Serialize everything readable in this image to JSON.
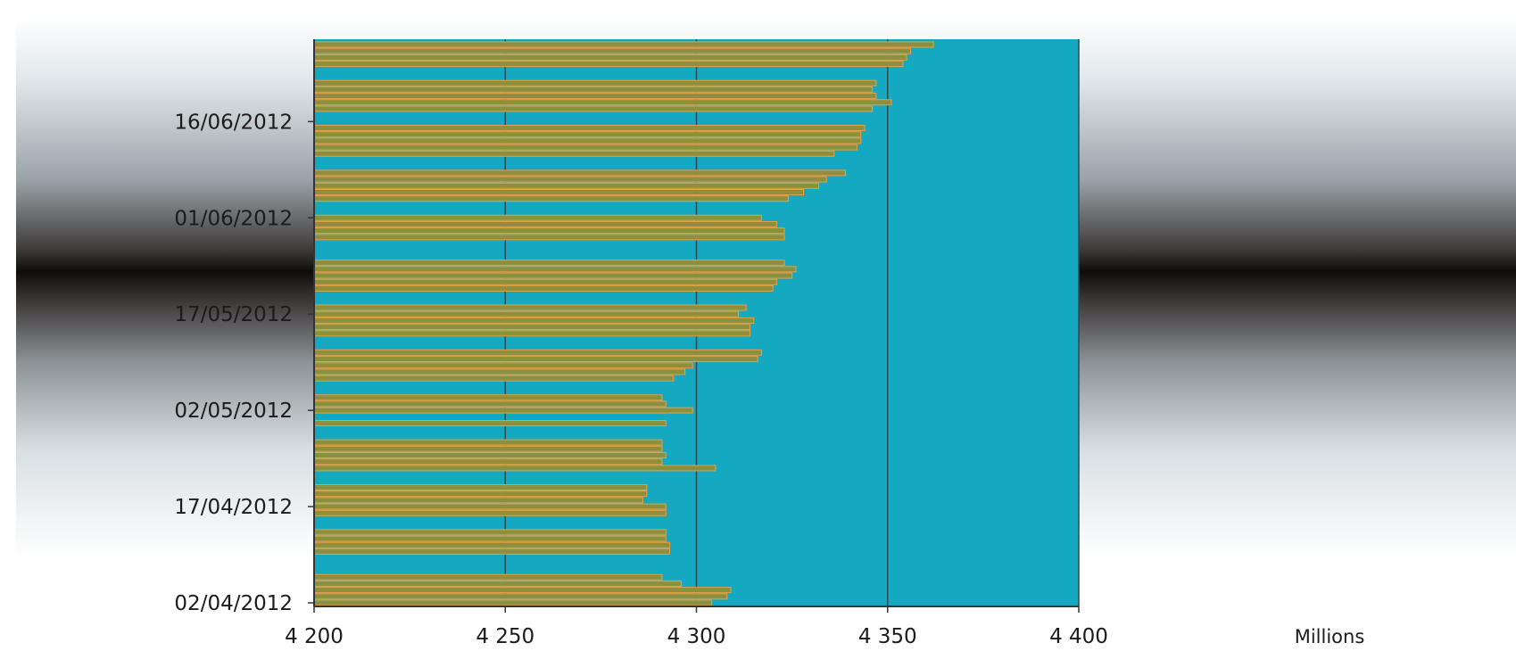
{
  "chart_data": {
    "type": "bar",
    "orientation": "horizontal",
    "title": "",
    "xlabel": "",
    "ylabel": "",
    "x_unit_label": "Millions",
    "xlim": [
      4200,
      4400
    ],
    "x_ticks": [
      4200,
      4250,
      4300,
      4350,
      4400
    ],
    "x_tick_labels": [
      "4 200",
      "4 250",
      "4 300",
      "4 350",
      "4 400"
    ],
    "y_tick_labels": [
      "02/04/2012",
      "17/04/2012",
      "02/05/2012",
      "17/05/2012",
      "01/06/2012",
      "16/06/2012"
    ],
    "y_tick_dates": [
      "2012-04-02",
      "2012-04-17",
      "2012-05-02",
      "2012-05-17",
      "2012-06-01",
      "2012-06-16"
    ],
    "y_range_dates": [
      "2012-04-02",
      "2012-06-28"
    ],
    "grid": {
      "vertical": true,
      "horizontal": false
    },
    "legend": "none",
    "colors": {
      "plot_background": "#14a9c0",
      "bar_fill": "#8c8f3e",
      "bar_stroke": "#e3a247",
      "gridline": "#2b4b52",
      "axis": "#333333"
    },
    "series": [
      {
        "dates": [
          "2012-04-02",
          "2012-04-03",
          "2012-04-04",
          "2012-04-05",
          "2012-04-06",
          "2012-04-10",
          "2012-04-11",
          "2012-04-12",
          "2012-04-13",
          "2012-04-16",
          "2012-04-17",
          "2012-04-18",
          "2012-04-19",
          "2012-04-20",
          "2012-04-23",
          "2012-04-24",
          "2012-04-25",
          "2012-04-26",
          "2012-04-27",
          "2012-04-30",
          "2012-05-02",
          "2012-05-03",
          "2012-05-04",
          "2012-05-07",
          "2012-05-08",
          "2012-05-09",
          "2012-05-10",
          "2012-05-11",
          "2012-05-14",
          "2012-05-15",
          "2012-05-16",
          "2012-05-17",
          "2012-05-18",
          "2012-05-21",
          "2012-05-22",
          "2012-05-23",
          "2012-05-24",
          "2012-05-25",
          "2012-05-29",
          "2012-05-30",
          "2012-05-31",
          "2012-06-01",
          "2012-06-04",
          "2012-06-05",
          "2012-06-06",
          "2012-06-07",
          "2012-06-08",
          "2012-06-11",
          "2012-06-12",
          "2012-06-13",
          "2012-06-14",
          "2012-06-15",
          "2012-06-18",
          "2012-06-19",
          "2012-06-20",
          "2012-06-21",
          "2012-06-22",
          "2012-06-25",
          "2012-06-26",
          "2012-06-27",
          "2012-06-28"
        ],
        "values": [
          4304,
          4308,
          4309,
          4296,
          4291,
          4293,
          4293,
          4292,
          4292,
          4292,
          4292,
          4286,
          4287,
          4287,
          4305,
          4291,
          4292,
          4291,
          4291,
          4292,
          4299,
          4292,
          4291,
          4294,
          4297,
          4299,
          4316,
          4317,
          4314,
          4314,
          4315,
          4311,
          4313,
          4320,
          4321,
          4325,
          4326,
          4323,
          4323,
          4323,
          4321,
          4317,
          4324,
          4328,
          4332,
          4334,
          4339,
          4336,
          4342,
          4343,
          4343,
          4344,
          4346,
          4351,
          4347,
          4346,
          4347,
          4354,
          4355,
          4356,
          4362
        ]
      }
    ]
  }
}
